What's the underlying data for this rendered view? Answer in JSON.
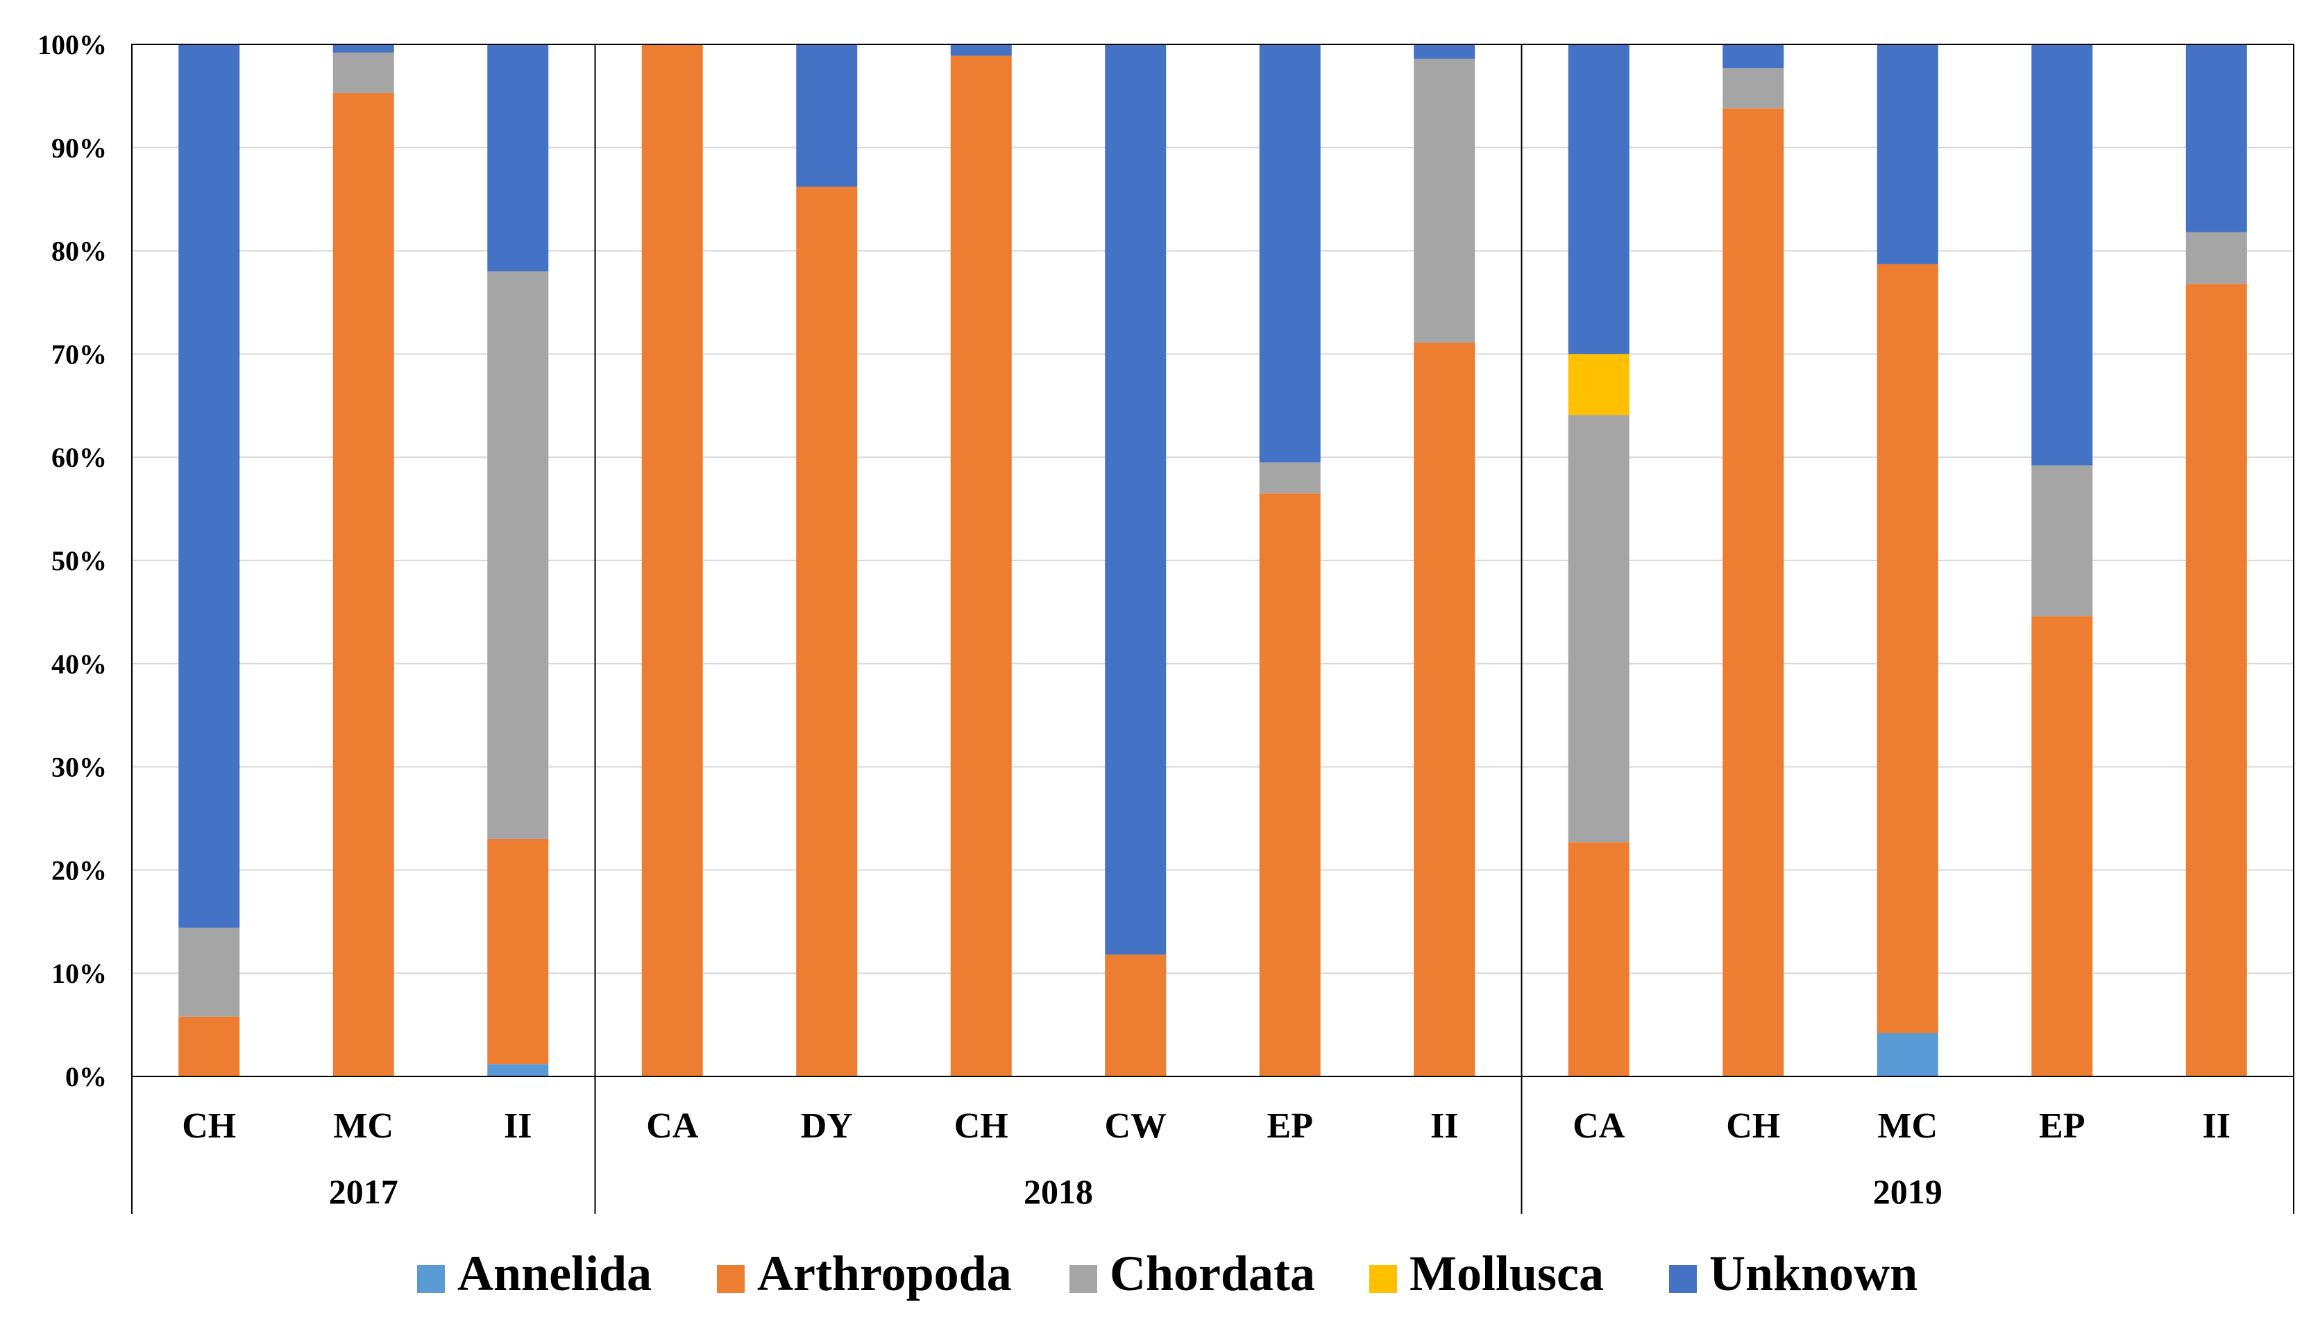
{
  "chart_data": {
    "type": "bar",
    "stacked": true,
    "percent": true,
    "title": "",
    "xlabel": "",
    "ylabel": "",
    "ylim": [
      0,
      100
    ],
    "y_ticks": [
      "0%",
      "10%",
      "20%",
      "30%",
      "40%",
      "50%",
      "60%",
      "70%",
      "80%",
      "90%",
      "100%"
    ],
    "groups": [
      {
        "label": "2017",
        "categories": [
          "CH",
          "MC",
          "II"
        ]
      },
      {
        "label": "2018",
        "categories": [
          "CA",
          "DY",
          "CH",
          "CW",
          "EP",
          "II"
        ]
      },
      {
        "label": "2019",
        "categories": [
          "CA",
          "CH",
          "MC",
          "EP",
          "II"
        ]
      }
    ],
    "series": [
      {
        "name": "Annelida",
        "color": "#5B9BD5",
        "values": [
          0,
          0,
          1.2,
          0,
          0,
          0,
          0,
          0,
          0,
          0,
          0,
          4.2,
          0,
          0
        ]
      },
      {
        "name": "Arthropoda",
        "color": "#ED7D31",
        "values": [
          5.8,
          95.3,
          21.8,
          100,
          86.2,
          98.9,
          11.8,
          56.5,
          71.1,
          22.7,
          93.8,
          74.5,
          44.6,
          76.8
        ]
      },
      {
        "name": "Chordata",
        "color": "#A5A5A5",
        "values": [
          8.6,
          3.9,
          55.0,
          0,
          0,
          0,
          0,
          3.0,
          27.5,
          41.4,
          3.9,
          0,
          14.6,
          5.0
        ]
      },
      {
        "name": "Mollusca",
        "color": "#FFC000",
        "values": [
          0,
          0,
          0,
          0,
          0,
          0,
          0,
          0,
          0,
          5.9,
          0,
          0,
          0,
          0
        ]
      },
      {
        "name": "Unknown",
        "color": "#4472C4",
        "values": [
          85.6,
          0.8,
          22.0,
          0,
          13.8,
          1.1,
          88.2,
          40.5,
          1.4,
          30.0,
          2.3,
          21.3,
          40.8,
          18.2
        ]
      }
    ],
    "legend_position": "bottom",
    "grid": true
  }
}
